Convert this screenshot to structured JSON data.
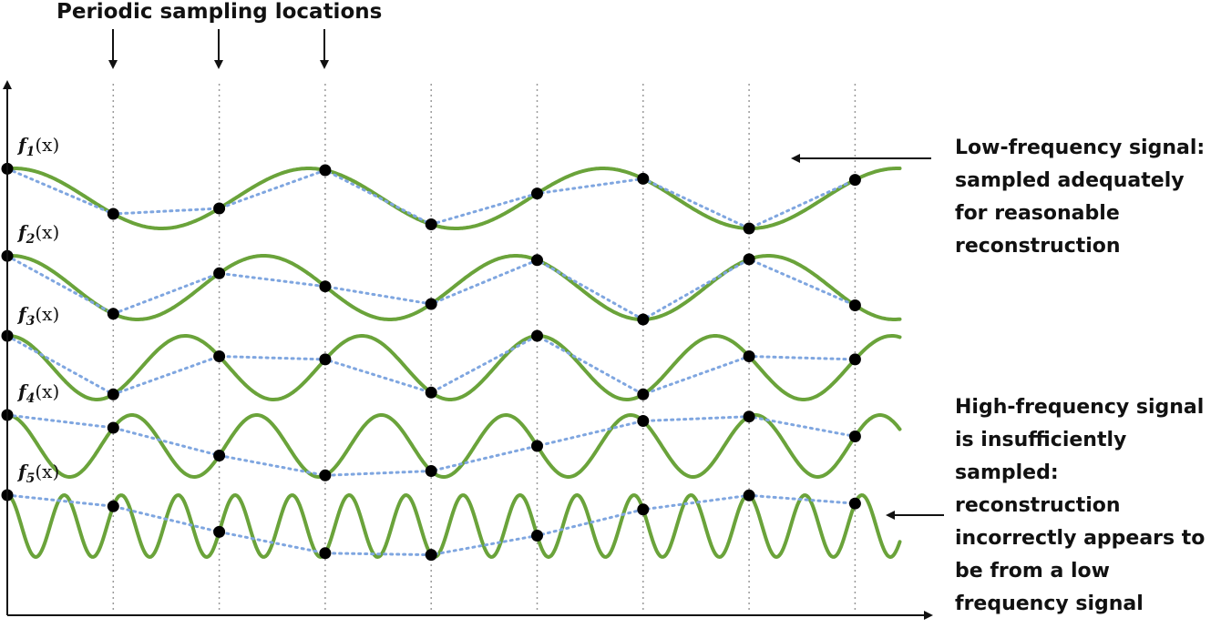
{
  "annotations": {
    "sampling_title": "Periodic sampling locations",
    "low_frequency_note": [
      "Low-frequency signal:",
      "sampled adequately",
      "for reasonable",
      "reconstruction"
    ],
    "high_frequency_note": [
      "High-frequency signal",
      "is insufficiently",
      "sampled:",
      "reconstruction",
      "incorrectly appears to",
      "be from a low",
      "frequency signal"
    ]
  },
  "signals": [
    {
      "id": "f1",
      "name": "f",
      "sub": "1",
      "arg": "(x)",
      "cycles_per_sample": 0.36
    },
    {
      "id": "f2",
      "name": "f",
      "sub": "2",
      "arg": "(x)",
      "cycles_per_sample": 0.42
    },
    {
      "id": "f3",
      "name": "f",
      "sub": "3",
      "arg": "(x)",
      "cycles_per_sample": 0.6
    },
    {
      "id": "f4",
      "name": "f",
      "sub": "4",
      "arg": "(x)",
      "cycles_per_sample": 0.85
    },
    {
      "id": "f5",
      "name": "f",
      "sub": "5",
      "arg": "(x)",
      "cycles_per_sample": 1.86
    }
  ],
  "sample_count": 9,
  "colors": {
    "signal": "#6aa33a",
    "reconstruction": "#7fa6e0",
    "sample_point": "#000000",
    "guide": "#9a9a9a",
    "axis": "#111111"
  }
}
